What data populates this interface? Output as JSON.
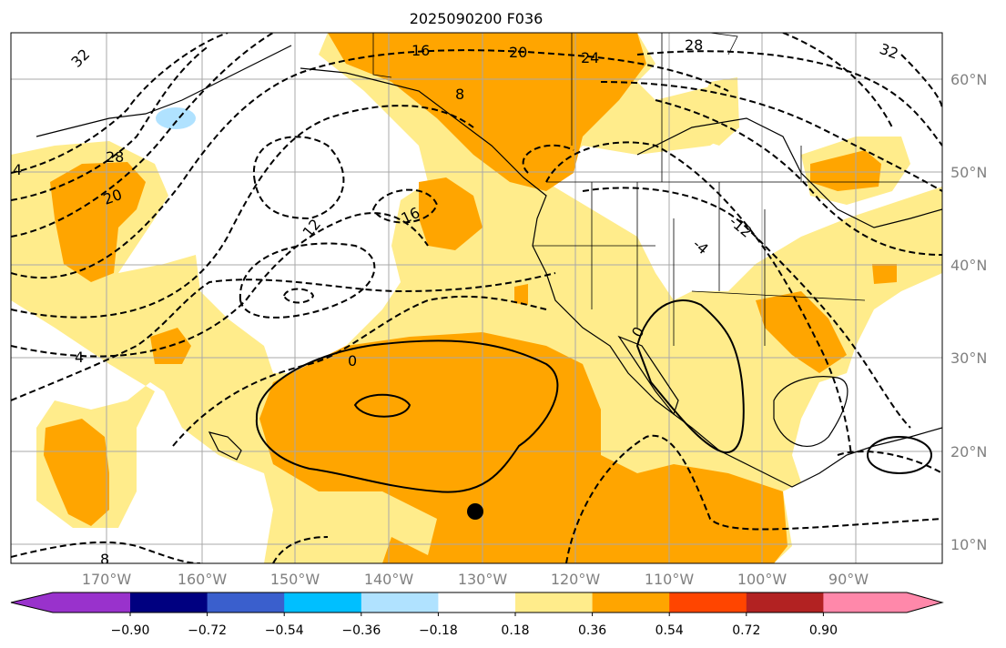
{
  "title": "2025090200 F036",
  "lon_labels": [
    "170°W",
    "160°W",
    "150°W",
    "140°W",
    "130°W",
    "120°W",
    "110°W",
    "100°W",
    "90°W"
  ],
  "lat_labels": [
    "60°N",
    "50°N",
    "40°N",
    "30°N",
    "20°N",
    "10°N"
  ],
  "contour_labels": [
    "32",
    "16",
    "20",
    "24",
    "28",
    "8",
    "28",
    "20",
    "4",
    "12",
    "16",
    "-12",
    "4",
    "0",
    "0",
    "4",
    "8",
    "32",
    "-4"
  ],
  "colorbar": {
    "ticks": [
      "−0.90",
      "−0.72",
      "−0.54",
      "−0.36",
      "−0.18",
      "0.18",
      "0.36",
      "0.54",
      "0.72",
      "0.90"
    ],
    "colors": [
      "#9932cc",
      "#000080",
      "#3a5fcd",
      "#00bfff",
      "#b0e2ff",
      "#ffffff",
      "#ffec8b",
      "#ffa500",
      "#ff4500",
      "#b22222",
      "#ff88aa"
    ]
  },
  "colors": {
    "yellow": "#ffec8b",
    "orange": "#ffa500",
    "lightblue": "#b0e2ff"
  },
  "marker": "station-dot"
}
